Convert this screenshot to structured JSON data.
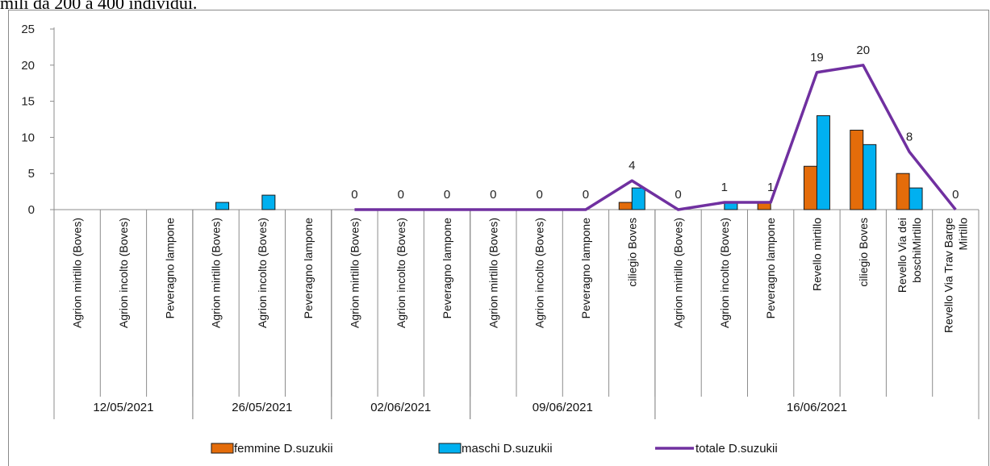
{
  "caption_fragment": "mili da 200 a 400 individui.",
  "chart_data": {
    "type": "bar",
    "ylim": [
      0,
      25
    ],
    "yticks": [
      0,
      5,
      10,
      15,
      20,
      25
    ],
    "grid": false,
    "legend_position": "bottom",
    "groups": [
      {
        "label": "12/05/2021",
        "categories": [
          "Agrion mirtillo (Boves)",
          "Agrion incolto (Boves)",
          "Peveragno lampone"
        ]
      },
      {
        "label": "26/05/2021",
        "categories": [
          "Agrion mirtillo (Boves)",
          "Agrion incolto (Boves)",
          "Peveragno lampone"
        ]
      },
      {
        "label": "02/06/2021",
        "categories": [
          "Agrion mirtillo (Boves)",
          "Agrion incolto (Boves)",
          "Peveragno lampone"
        ]
      },
      {
        "label": "09/06/2021",
        "categories": [
          "Agrion mirtillo (Boves)",
          "Agrion incolto (Boves)",
          "Peveragno lampone",
          "ciliegio Boves"
        ]
      },
      {
        "label": "16/06/2021",
        "categories": [
          "Agrion mirtillo (Boves)",
          "Agrion incolto (Boves)",
          "Peveragno lampone",
          "Revello mirtillo",
          "ciliegio Boves",
          "Revello Via dei boschiMirtillo",
          "Revello Via Trav Barge Mirtillo"
        ]
      }
    ],
    "categories": [
      "Agrion mirtillo (Boves)",
      "Agrion incolto (Boves)",
      "Peveragno lampone",
      "Agrion mirtillo (Boves)",
      "Agrion incolto (Boves)",
      "Peveragno lampone",
      "Agrion mirtillo (Boves)",
      "Agrion incolto (Boves)",
      "Peveragno lampone",
      "Agrion mirtillo (Boves)",
      "Agrion incolto (Boves)",
      "Peveragno lampone",
      "ciliegio Boves",
      "Agrion mirtillo (Boves)",
      "Agrion incolto (Boves)",
      "Peveragno lampone",
      "Revello mirtillo",
      "ciliegio Boves",
      "Revello Via dei boschiMirtillo",
      "Revello Via Trav Barge Mirtillo"
    ],
    "series": [
      {
        "name": "femmine D.suzukii",
        "type": "bar",
        "color": "#E46C0A",
        "values": [
          0,
          0,
          0,
          0,
          0,
          0,
          0,
          0,
          0,
          0,
          0,
          0,
          1,
          0,
          0,
          1,
          6,
          11,
          5,
          0
        ]
      },
      {
        "name": "maschi D.suzukii",
        "type": "bar",
        "color": "#00B0F0",
        "values": [
          0,
          0,
          0,
          1,
          2,
          0,
          0,
          0,
          0,
          0,
          0,
          0,
          3,
          0,
          1,
          0,
          13,
          9,
          3,
          0
        ]
      },
      {
        "name": "totale D.suzukii",
        "type": "line",
        "color": "#7030A0",
        "values": [
          null,
          null,
          null,
          null,
          null,
          null,
          0,
          0,
          0,
          0,
          0,
          0,
          4,
          0,
          1,
          1,
          19,
          20,
          8,
          0
        ],
        "labels": [
          null,
          null,
          null,
          null,
          null,
          null,
          "0",
          "0",
          "0",
          "0",
          "0",
          "0",
          "4",
          "0",
          "1",
          "1",
          "19",
          "20",
          "8",
          "0"
        ]
      }
    ]
  }
}
